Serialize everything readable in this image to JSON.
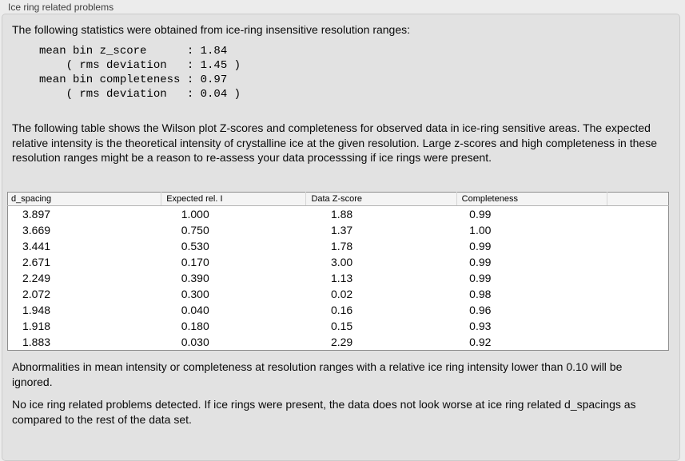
{
  "panel": {
    "title": "Ice ring related problems"
  },
  "intro": "The following statistics were obtained from ice-ring insensitive resolution ranges:",
  "stats_block": "mean bin z_score      : 1.84\n    ( rms deviation   : 1.45 )\nmean bin completeness : 0.97\n    ( rms deviation   : 0.04 )",
  "description": "The following table shows the Wilson plot Z-scores and completeness for observed data in ice-ring sensitive areas. The expected relative intensity is the theoretical intensity of crystalline ice at the given resolution. Large z-scores and high completeness in these resolution ranges might be a reason to re-assess your data processsing if ice rings were present.",
  "table": {
    "columns": [
      "d_spacing",
      "Expected rel. I",
      "Data Z-score",
      "Completeness",
      ""
    ],
    "rows": [
      [
        "3.897",
        "1.000",
        "1.88",
        "0.99"
      ],
      [
        "3.669",
        "0.750",
        "1.37",
        "1.00"
      ],
      [
        "3.441",
        "0.530",
        "1.78",
        "0.99"
      ],
      [
        "2.671",
        "0.170",
        "3.00",
        "0.99"
      ],
      [
        "2.249",
        "0.390",
        "1.13",
        "0.99"
      ],
      [
        "2.072",
        "0.300",
        "0.02",
        "0.98"
      ],
      [
        "1.948",
        "0.040",
        "0.16",
        "0.96"
      ],
      [
        "1.918",
        "0.180",
        "0.15",
        "0.93"
      ],
      [
        "1.883",
        "0.030",
        "2.29",
        "0.92"
      ]
    ]
  },
  "note": "Abnormalities in mean intensity or completeness at resolution ranges with a relative ice ring intensity lower than 0.10 will be ignored.",
  "conclusion": "No ice ring related problems detected. If ice rings were present, the data does not look worse at ice ring related d_spacings as compared to the rest of the data set.",
  "colors": {
    "page_bg": "#ececec",
    "groupbox_bg": "#e2e2e2",
    "groupbox_border": "#cbcbcb",
    "table_bg": "#ffffff",
    "table_border": "#8e8e8e",
    "header_bg": "#f4f4f4",
    "text": "#0a0a0a"
  }
}
